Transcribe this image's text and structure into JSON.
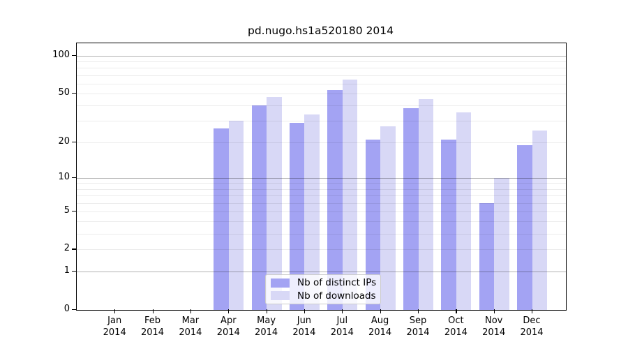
{
  "title": "pd.nugo.hs1a520180 2014",
  "chart_data": {
    "type": "bar",
    "title": "pd.nugo.hs1a520180 2014",
    "categories": [
      "Jan 2014",
      "Feb 2014",
      "Mar 2014",
      "Apr 2014",
      "May 2014",
      "Jun 2014",
      "Jul 2014",
      "Aug 2014",
      "Sep 2014",
      "Oct 2014",
      "Nov 2014",
      "Dec 2014"
    ],
    "series": [
      {
        "name": "Nb of distinct IPs",
        "color": "#a3a3f3",
        "values": [
          0,
          0,
          0,
          26,
          40,
          29,
          53,
          21,
          38,
          21,
          6,
          19
        ]
      },
      {
        "name": "Nb of downloads",
        "color": "#d8d8f6",
        "values": [
          0,
          0,
          0,
          30,
          47,
          34,
          65,
          27,
          45,
          35,
          10,
          25
        ]
      }
    ],
    "y_scale": "log1p",
    "ylim": [
      0,
      126
    ],
    "y_ticks": [
      0,
      1,
      2,
      5,
      10,
      20,
      50,
      100
    ],
    "y_gridlines_minor": [
      2,
      3,
      4,
      5,
      6,
      7,
      8,
      9,
      20,
      30,
      40,
      50,
      60,
      70,
      80,
      90
    ],
    "y_gridlines_major": [
      1,
      10,
      100
    ],
    "grid": true,
    "xlabel": "",
    "ylabel": "",
    "legend_position": "bottom-center"
  }
}
